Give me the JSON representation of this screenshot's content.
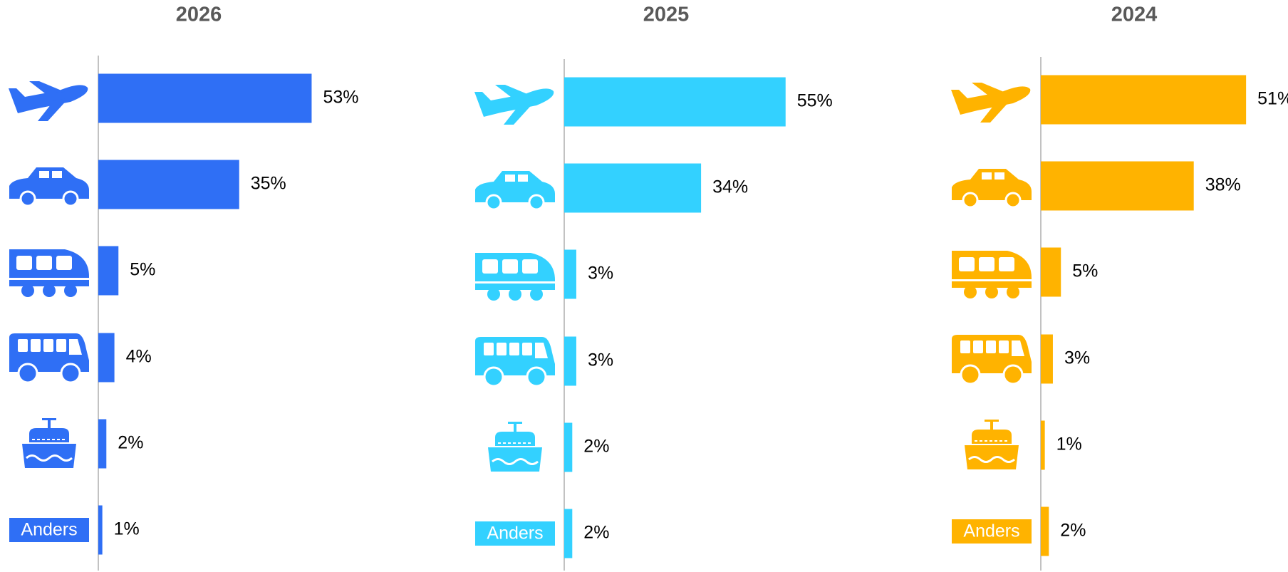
{
  "chart_data": [
    {
      "type": "bar",
      "title": "2026",
      "color": "#2f6ff5",
      "categories": [
        null,
        null,
        null,
        null,
        null,
        "Anders"
      ],
      "values": [
        53,
        35,
        5,
        4,
        2,
        1
      ],
      "value_labels": [
        "53%",
        "35%",
        "5%",
        "4%",
        "2%",
        "1%"
      ]
    },
    {
      "type": "bar",
      "title": "2025",
      "color": "#33d1ff",
      "categories": [
        null,
        null,
        null,
        null,
        null,
        "Anders"
      ],
      "values": [
        55,
        34,
        3,
        3,
        2,
        2
      ],
      "value_labels": [
        "55%",
        "34%",
        "3%",
        "3%",
        "2%",
        "2%"
      ]
    },
    {
      "type": "bar",
      "title": "2024",
      "color": "#ffb300",
      "categories": [
        null,
        null,
        null,
        null,
        null,
        "Anders"
      ],
      "values": [
        51,
        38,
        5,
        3,
        1,
        2
      ],
      "value_labels": [
        "51%",
        "38%",
        "5%",
        "3%",
        "1%",
        "2%"
      ]
    }
  ]
}
